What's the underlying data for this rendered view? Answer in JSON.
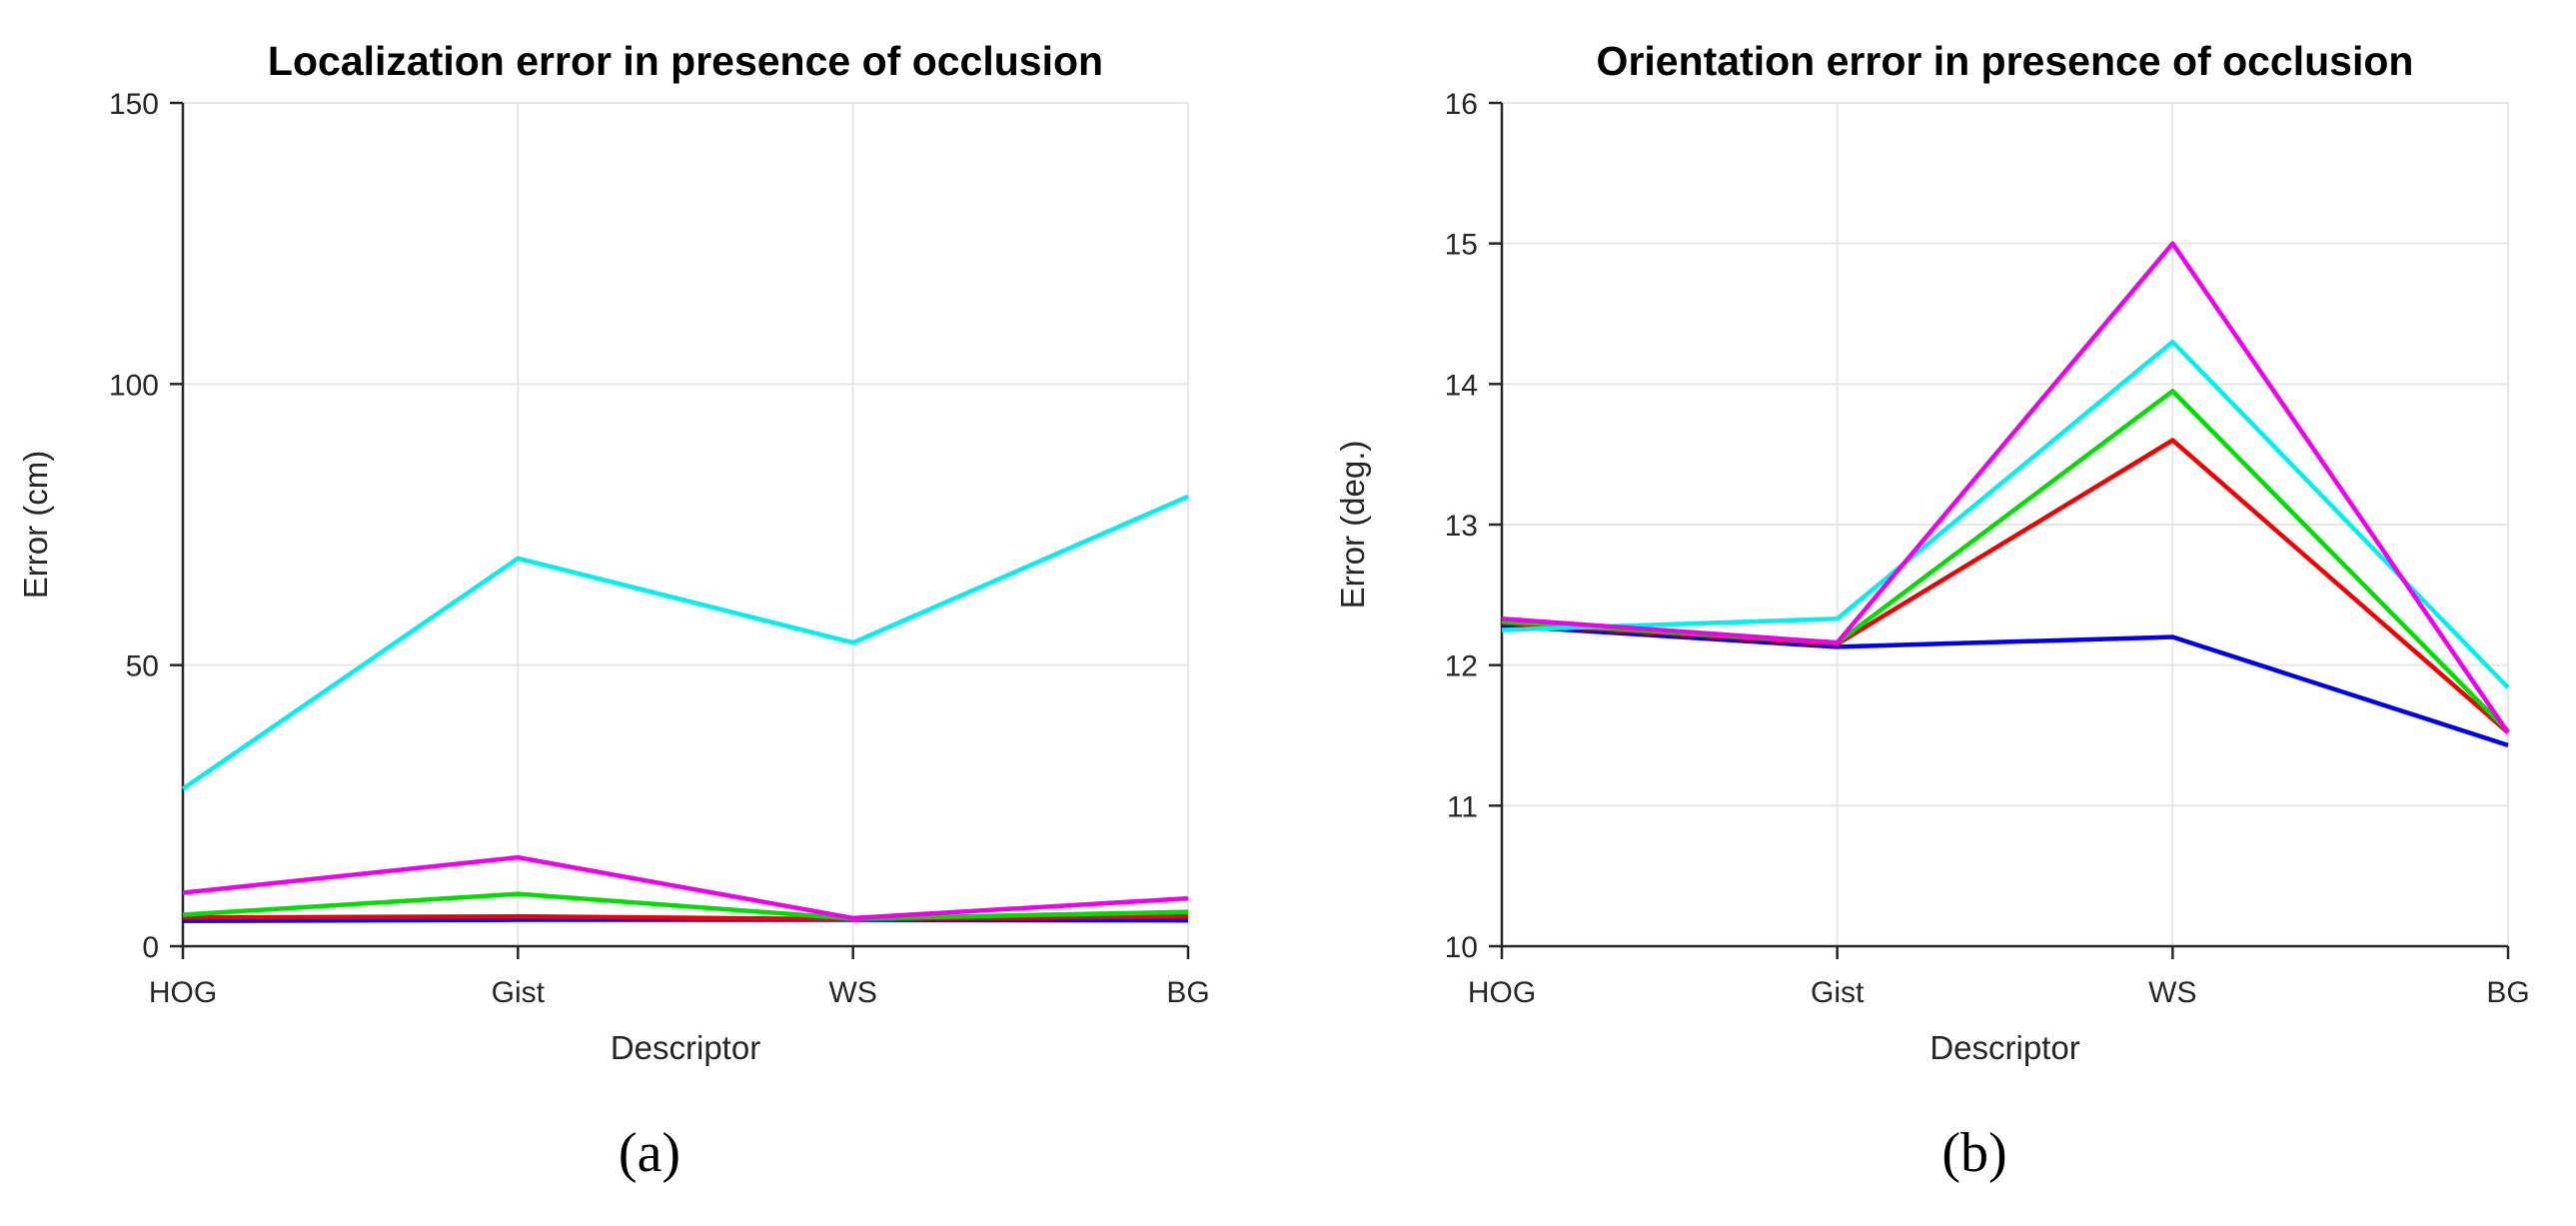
{
  "figure": {
    "background": "#ffffff",
    "captions": [
      "(a)",
      "(b)"
    ]
  },
  "chart_data": [
    {
      "type": "line",
      "title": "Localization error in presence of occlusion",
      "xlabel": "Descriptor",
      "ylabel": "Error (cm)",
      "caption": "(a)",
      "categories": [
        "HOG",
        "Gist",
        "WS",
        "BG"
      ],
      "ylim": [
        0,
        150
      ],
      "yticks": [
        0,
        50,
        100,
        150
      ],
      "grid": true,
      "legend": "none",
      "series": [
        {
          "name": "blue",
          "color": "#0000EE",
          "values": [
            4.5,
            4.7,
            4.7,
            4.6
          ]
        },
        {
          "name": "red",
          "color": "#F00000",
          "values": [
            5.1,
            5.3,
            4.8,
            5.3
          ]
        },
        {
          "name": "green",
          "color": "#00DD00",
          "values": [
            5.6,
            9.3,
            4.9,
            6.1
          ]
        },
        {
          "name": "cyan",
          "color": "#00EFEF",
          "values": [
            28,
            69,
            54,
            80
          ]
        },
        {
          "name": "magenta",
          "color": "#EE00EE",
          "values": [
            9.5,
            15.8,
            5.0,
            8.5
          ]
        }
      ]
    },
    {
      "type": "line",
      "title": "Orientation error in presence of occlusion",
      "xlabel": "Descriptor",
      "ylabel": "Error (deg.)",
      "caption": "(b)",
      "categories": [
        "HOG",
        "Gist",
        "WS",
        "BG"
      ],
      "ylim": [
        10,
        16
      ],
      "yticks": [
        10,
        11,
        12,
        13,
        14,
        15,
        16
      ],
      "grid": true,
      "legend": "none",
      "series": [
        {
          "name": "blue",
          "color": "#0000EE",
          "values": [
            12.28,
            12.13,
            12.2,
            11.43
          ]
        },
        {
          "name": "red",
          "color": "#F00000",
          "values": [
            12.3,
            12.15,
            13.6,
            11.52
          ]
        },
        {
          "name": "green",
          "color": "#00DD00",
          "values": [
            12.31,
            12.16,
            13.95,
            11.53
          ]
        },
        {
          "name": "cyan",
          "color": "#00EFEF",
          "values": [
            12.25,
            12.33,
            14.3,
            11.84
          ]
        },
        {
          "name": "magenta",
          "color": "#EE00EE",
          "values": [
            12.33,
            12.16,
            15.0,
            11.52
          ]
        }
      ]
    }
  ]
}
